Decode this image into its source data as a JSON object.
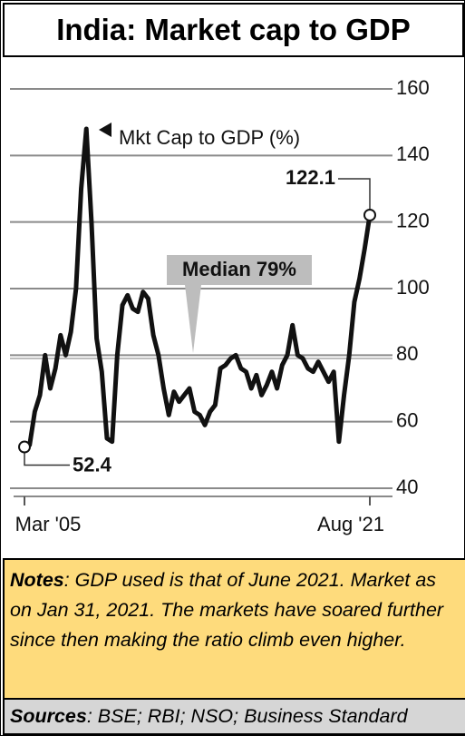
{
  "chart_data": {
    "type": "line",
    "title": "India: Market cap to GDP",
    "categories": [
      "Mar '05",
      null,
      null,
      null,
      null,
      null,
      null,
      null,
      null,
      null,
      null,
      null,
      null,
      null,
      null,
      null,
      null,
      null,
      null,
      null,
      null,
      null,
      null,
      null,
      null,
      null,
      null,
      null,
      null,
      null,
      null,
      null,
      null,
      null,
      null,
      null,
      null,
      null,
      null,
      null,
      null,
      null,
      null,
      null,
      null,
      null,
      null,
      null,
      null,
      null,
      null,
      null,
      null,
      null,
      null,
      null,
      null,
      null,
      null,
      null,
      null,
      null,
      null,
      null,
      null,
      null,
      null,
      "Aug '21"
    ],
    "series": [
      {
        "name": "Mkt Cap to GDP (%)",
        "color": "#111111",
        "values": [
          52.4,
          53,
          63,
          68,
          80,
          70,
          76,
          86,
          80,
          87,
          100,
          130,
          148,
          120,
          85,
          75,
          55,
          54,
          80,
          95,
          98,
          94,
          93,
          99,
          97,
          86,
          80,
          70,
          62,
          69,
          66,
          68,
          70,
          63,
          62,
          59,
          63,
          65,
          76,
          77,
          79,
          80,
          76,
          75,
          70,
          74,
          68,
          71,
          75,
          70,
          77,
          80,
          89,
          80,
          79,
          76,
          75,
          78,
          75,
          72,
          75,
          54,
          68,
          80,
          96,
          103,
          112,
          122.1
        ]
      }
    ],
    "ylim": [
      40,
      160
    ],
    "yticks": [
      40,
      60,
      80,
      100,
      120,
      140,
      160
    ],
    "grid": true,
    "median": 79,
    "median_label": "Median 79%"
  },
  "notes": {
    "label": "Notes",
    "text": ": GDP used is that of June 2021. Market as on Jan 31, 2021.  The markets have soared further since then making the ratio climb even higher."
  },
  "sources": {
    "label": "Sources",
    "text": ": BSE; RBI; NSO; Business Standard"
  }
}
